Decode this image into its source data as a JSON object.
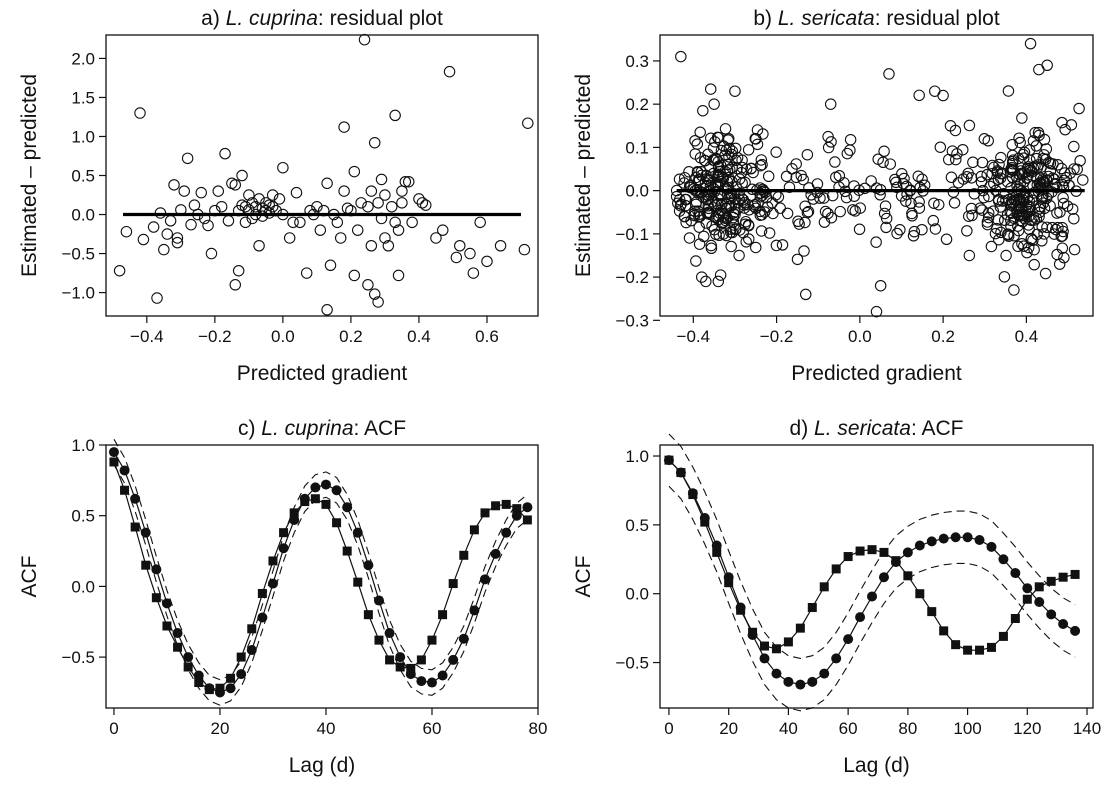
{
  "chart_data": [
    {
      "id": "a",
      "type": "scatter",
      "title_prefix": "a) ",
      "title_species": "L. cuprina",
      "title_suffix": ": residual plot",
      "xlabel": "Predicted gradient",
      "ylabel": "Estimated – predicted",
      "xlim": [
        -0.52,
        0.75
      ],
      "ylim": [
        -1.3,
        2.3
      ],
      "xticks": [
        -0.4,
        -0.2,
        0.0,
        0.2,
        0.4,
        0.6
      ],
      "xtick_labels": [
        "−0.4",
        "−0.2",
        "0.0",
        "0.2",
        "0.4",
        "0.6"
      ],
      "yticks": [
        -1.0,
        -0.5,
        0.0,
        0.5,
        1.0,
        1.5,
        2.0
      ],
      "ytick_labels": [
        "−1.0",
        "−0.5",
        "0.0",
        "0.5",
        "1.0",
        "1.5",
        "2.0"
      ],
      "reference_line": {
        "y": 0,
        "x": [
          -0.47,
          0.7
        ]
      },
      "points": [
        [
          -0.48,
          -0.72
        ],
        [
          -0.46,
          -0.22
        ],
        [
          -0.42,
          1.3
        ],
        [
          -0.41,
          -0.32
        ],
        [
          -0.38,
          -0.16
        ],
        [
          -0.37,
          -1.07
        ],
        [
          -0.36,
          0.02
        ],
        [
          -0.35,
          -0.45
        ],
        [
          -0.34,
          -0.25
        ],
        [
          -0.33,
          -0.08
        ],
        [
          -0.32,
          0.38
        ],
        [
          -0.31,
          -0.3
        ],
        [
          -0.31,
          -0.36
        ],
        [
          -0.3,
          0.06
        ],
        [
          -0.29,
          0.3
        ],
        [
          -0.28,
          0.72
        ],
        [
          -0.27,
          -0.13
        ],
        [
          -0.26,
          0.12
        ],
        [
          -0.25,
          0.0
        ],
        [
          -0.24,
          0.28
        ],
        [
          -0.23,
          -0.05
        ],
        [
          -0.22,
          -0.14
        ],
        [
          -0.21,
          -0.5
        ],
        [
          -0.2,
          0.05
        ],
        [
          -0.19,
          0.3
        ],
        [
          -0.18,
          0.1
        ],
        [
          -0.17,
          0.78
        ],
        [
          -0.16,
          -0.08
        ],
        [
          -0.15,
          0.4
        ],
        [
          -0.14,
          -0.9
        ],
        [
          -0.14,
          0.38
        ],
        [
          -0.13,
          -0.72
        ],
        [
          -0.13,
          0.05
        ],
        [
          -0.12,
          0.12
        ],
        [
          -0.12,
          0.5
        ],
        [
          -0.11,
          0.1
        ],
        [
          -0.11,
          -0.1
        ],
        [
          -0.1,
          0.06
        ],
        [
          -0.1,
          0.25
        ],
        [
          -0.09,
          0.15
        ],
        [
          -0.09,
          -0.05
        ],
        [
          -0.08,
          0.0
        ],
        [
          -0.08,
          0.1
        ],
        [
          -0.07,
          -0.4
        ],
        [
          -0.07,
          0.2
        ],
        [
          -0.06,
          0.08
        ],
        [
          -0.06,
          -0.02
        ],
        [
          -0.05,
          0.05
        ],
        [
          -0.05,
          0.15
        ],
        [
          -0.04,
          0.12
        ],
        [
          -0.04,
          0.02
        ],
        [
          -0.03,
          0.25
        ],
        [
          -0.03,
          0.1
        ],
        [
          -0.02,
          0.05
        ],
        [
          -0.01,
          0.2
        ],
        [
          0.0,
          0.6
        ],
        [
          0.0,
          0.0
        ],
        [
          0.02,
          -0.3
        ],
        [
          0.03,
          -0.1
        ],
        [
          0.04,
          0.28
        ],
        [
          0.05,
          -0.1
        ],
        [
          0.07,
          -0.75
        ],
        [
          0.08,
          0.05
        ],
        [
          0.09,
          0.0
        ],
        [
          0.1,
          0.1
        ],
        [
          0.11,
          -0.2
        ],
        [
          0.12,
          0.05
        ],
        [
          0.13,
          0.4
        ],
        [
          0.13,
          -1.22
        ],
        [
          0.14,
          -0.65
        ],
        [
          0.15,
          0.0
        ],
        [
          0.16,
          -0.1
        ],
        [
          0.17,
          -0.3
        ],
        [
          0.18,
          1.12
        ],
        [
          0.18,
          0.3
        ],
        [
          0.19,
          0.08
        ],
        [
          0.2,
          0.05
        ],
        [
          0.21,
          0.55
        ],
        [
          0.21,
          -0.78
        ],
        [
          0.22,
          -0.2
        ],
        [
          0.23,
          0.15
        ],
        [
          0.24,
          2.24
        ],
        [
          0.25,
          -0.9
        ],
        [
          0.25,
          0.1
        ],
        [
          0.26,
          0.3
        ],
        [
          0.26,
          -0.4
        ],
        [
          0.27,
          -1.02
        ],
        [
          0.27,
          0.92
        ],
        [
          0.28,
          0.15
        ],
        [
          0.28,
          -1.12
        ],
        [
          0.29,
          -0.05
        ],
        [
          0.29,
          0.45
        ],
        [
          0.3,
          -0.3
        ],
        [
          0.3,
          0.25
        ],
        [
          0.31,
          -0.4
        ],
        [
          0.32,
          0.1
        ],
        [
          0.33,
          -0.1
        ],
        [
          0.33,
          1.27
        ],
        [
          0.34,
          -0.2
        ],
        [
          0.34,
          -0.78
        ],
        [
          0.35,
          0.15
        ],
        [
          0.35,
          0.3
        ],
        [
          0.36,
          0.42
        ],
        [
          0.37,
          0.42
        ],
        [
          0.38,
          -0.1
        ],
        [
          0.4,
          0.2
        ],
        [
          0.41,
          0.15
        ],
        [
          0.42,
          0.12
        ],
        [
          0.45,
          -0.3
        ],
        [
          0.47,
          -0.2
        ],
        [
          0.49,
          1.83
        ],
        [
          0.51,
          -0.55
        ],
        [
          0.52,
          -0.4
        ],
        [
          0.55,
          -0.5
        ],
        [
          0.56,
          -0.75
        ],
        [
          0.58,
          -0.1
        ],
        [
          0.6,
          -0.6
        ],
        [
          0.64,
          -0.4
        ],
        [
          0.71,
          -0.45
        ],
        [
          0.72,
          1.17
        ]
      ]
    },
    {
      "id": "b",
      "type": "scatter",
      "title_prefix": "b) ",
      "title_species": "L. sericata",
      "title_suffix": ": residual plot",
      "xlabel": "Predicted gradient",
      "ylabel": "Estimated – predicted",
      "xlim": [
        -0.48,
        0.56
      ],
      "ylim": [
        -0.29,
        0.36
      ],
      "xticks": [
        -0.4,
        -0.2,
        0.0,
        0.2,
        0.4
      ],
      "xtick_labels": [
        "−0.4",
        "−0.2",
        "0.0",
        "0.2",
        "0.4"
      ],
      "yticks": [
        -0.3,
        -0.2,
        -0.1,
        0.0,
        0.1,
        0.2,
        0.3
      ],
      "ytick_labels": [
        "−0.3",
        "−0.2",
        "−0.1",
        "0.0",
        "0.1",
        "0.2",
        "0.3"
      ],
      "reference_line": {
        "y": 0,
        "x": [
          -0.44,
          0.54
        ]
      },
      "points_generated": {
        "n": 650,
        "notable_points": [
          [
            -0.43,
            0.31
          ],
          [
            0.41,
            0.34
          ],
          [
            0.43,
            0.28
          ],
          [
            0.45,
            0.29
          ],
          [
            -0.3,
            0.23
          ],
          [
            -0.35,
            0.2
          ],
          [
            -0.34,
            -0.21
          ],
          [
            -0.37,
            -0.21
          ],
          [
            0.04,
            -0.28
          ],
          [
            0.05,
            -0.22
          ],
          [
            -0.13,
            -0.24
          ],
          [
            0.37,
            -0.23
          ],
          [
            0.07,
            0.27
          ],
          [
            0.2,
            0.22
          ],
          [
            0.18,
            0.23
          ],
          [
            -0.07,
            0.2
          ],
          [
            0.48,
            -0.17
          ],
          [
            -0.29,
            -0.15
          ]
        ]
      }
    },
    {
      "id": "c",
      "type": "line",
      "title_prefix": "c) ",
      "title_species": "L. cuprina",
      "title_suffix": ": ACF",
      "xlabel": "Lag (d)",
      "ylabel": "ACF",
      "xlim": [
        -1.5,
        80
      ],
      "ylim": [
        -0.86,
        1.0
      ],
      "xticks": [
        0,
        20,
        40,
        60,
        80
      ],
      "xtick_labels": [
        "0",
        "20",
        "40",
        "60",
        "80"
      ],
      "yticks": [
        -0.5,
        0.0,
        0.5,
        1.0
      ],
      "ytick_labels": [
        "−0.5",
        "0.0",
        "0.5",
        "1.0"
      ],
      "series": [
        {
          "marker": "square",
          "x": [
            0,
            2,
            4,
            6,
            8,
            10,
            12,
            14,
            16,
            18,
            20,
            22,
            24,
            26,
            28,
            30,
            32,
            34,
            36,
            38,
            40,
            42,
            44,
            46,
            48,
            50,
            52,
            54,
            56,
            58,
            60,
            62,
            64,
            66,
            68,
            70,
            72,
            74,
            76,
            78
          ],
          "values": [
            0.88,
            0.68,
            0.42,
            0.15,
            -0.08,
            -0.28,
            -0.43,
            -0.57,
            -0.68,
            -0.73,
            -0.72,
            -0.65,
            -0.5,
            -0.3,
            -0.05,
            0.18,
            0.38,
            0.52,
            0.6,
            0.62,
            0.58,
            0.45,
            0.25,
            0.03,
            -0.2,
            -0.38,
            -0.52,
            -0.57,
            -0.58,
            -0.52,
            -0.38,
            -0.2,
            0.02,
            0.22,
            0.4,
            0.52,
            0.57,
            0.58,
            0.55,
            0.47
          ]
        },
        {
          "marker": "circle",
          "x": [
            0,
            2,
            4,
            6,
            8,
            10,
            12,
            14,
            16,
            18,
            20,
            22,
            24,
            26,
            28,
            30,
            32,
            34,
            36,
            38,
            40,
            42,
            44,
            46,
            48,
            50,
            52,
            54,
            56,
            58,
            60,
            62,
            64,
            66,
            68,
            70,
            72,
            74,
            76,
            78
          ],
          "values": [
            0.95,
            0.82,
            0.62,
            0.38,
            0.12,
            -0.12,
            -0.33,
            -0.5,
            -0.63,
            -0.72,
            -0.75,
            -0.72,
            -0.62,
            -0.45,
            -0.22,
            0.02,
            0.27,
            0.47,
            0.62,
            0.7,
            0.72,
            0.68,
            0.56,
            0.38,
            0.15,
            -0.1,
            -0.33,
            -0.5,
            -0.62,
            -0.67,
            -0.68,
            -0.63,
            -0.52,
            -0.37,
            -0.17,
            0.05,
            0.23,
            0.38,
            0.5,
            0.56
          ]
        }
      ],
      "envelope_offset": 0.09
    },
    {
      "id": "d",
      "type": "line",
      "title_prefix": "d) ",
      "title_species": "L. sericata",
      "title_suffix": ": ACF",
      "xlabel": "Lag (d)",
      "ylabel": "ACF",
      "xlim": [
        -3,
        142
      ],
      "ylim": [
        -0.83,
        1.08
      ],
      "xticks": [
        0,
        20,
        40,
        60,
        80,
        100,
        120,
        140
      ],
      "xtick_labels": [
        "0",
        "20",
        "40",
        "60",
        "80",
        "100",
        "120",
        "140"
      ],
      "yticks": [
        -0.5,
        0.0,
        0.5,
        1.0
      ],
      "ytick_labels": [
        "−0.5",
        "0.0",
        "0.5",
        "1.0"
      ],
      "series": [
        {
          "marker": "square",
          "x": [
            0,
            4,
            8,
            12,
            16,
            20,
            24,
            28,
            32,
            36,
            40,
            44,
            48,
            52,
            56,
            60,
            64,
            68,
            72,
            76,
            80,
            84,
            88,
            92,
            96,
            100,
            104,
            108,
            112,
            116,
            120,
            124,
            128,
            132,
            136
          ],
          "values": [
            0.97,
            0.88,
            0.72,
            0.52,
            0.3,
            0.08,
            -0.12,
            -0.28,
            -0.38,
            -0.4,
            -0.35,
            -0.25,
            -0.1,
            0.05,
            0.18,
            0.27,
            0.31,
            0.32,
            0.3,
            0.24,
            0.13,
            0.0,
            -0.13,
            -0.27,
            -0.37,
            -0.41,
            -0.41,
            -0.39,
            -0.31,
            -0.18,
            -0.04,
            0.05,
            0.09,
            0.12,
            0.14
          ]
        },
        {
          "marker": "circle",
          "x": [
            0,
            4,
            8,
            12,
            16,
            20,
            24,
            28,
            32,
            36,
            40,
            44,
            48,
            52,
            56,
            60,
            64,
            68,
            72,
            76,
            80,
            84,
            88,
            92,
            96,
            100,
            104,
            108,
            112,
            116,
            120,
            124,
            128,
            132,
            136
          ],
          "values": [
            0.97,
            0.88,
            0.73,
            0.55,
            0.35,
            0.12,
            -0.1,
            -0.3,
            -0.47,
            -0.58,
            -0.64,
            -0.66,
            -0.64,
            -0.58,
            -0.47,
            -0.33,
            -0.17,
            -0.02,
            0.12,
            0.23,
            0.3,
            0.35,
            0.38,
            0.4,
            0.41,
            0.41,
            0.39,
            0.34,
            0.25,
            0.15,
            0.04,
            -0.06,
            -0.15,
            -0.22,
            -0.27
          ]
        }
      ],
      "envelope_offset": 0.19
    }
  ]
}
